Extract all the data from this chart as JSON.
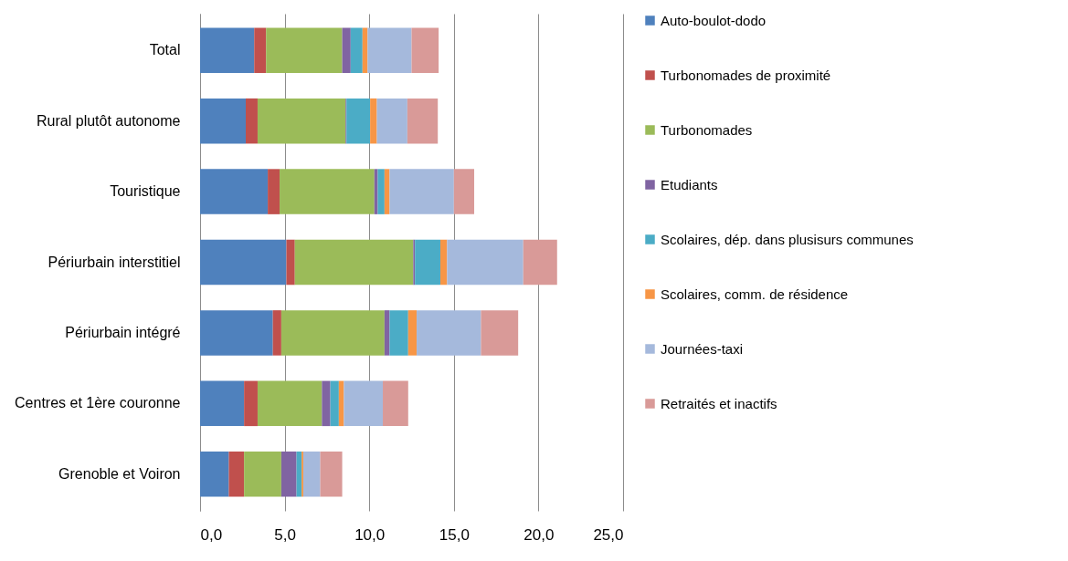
{
  "chart_data": {
    "type": "bar",
    "orientation": "horizontal",
    "stacked": true,
    "categories": [
      "Total",
      "Rural plutôt autonome",
      "Touristique",
      "Périurbain interstitiel",
      "Périurbain intégré",
      "Centres et 1ère couronne",
      "Grenoble et Voiron"
    ],
    "series": [
      {
        "name": "Auto-boulot-dodo",
        "color": "#4f81bd",
        "values": [
          3.2,
          2.7,
          4.0,
          5.1,
          4.3,
          2.6,
          1.7
        ]
      },
      {
        "name": "Turbonomades de proximité",
        "color": "#c0504d",
        "values": [
          0.7,
          0.7,
          0.7,
          0.5,
          0.5,
          0.8,
          0.9
        ]
      },
      {
        "name": "Turbonomades",
        "color": "#9bbb59",
        "values": [
          4.5,
          5.2,
          5.6,
          7.0,
          6.1,
          3.8,
          2.2
        ]
      },
      {
        "name": "Etudiants",
        "color": "#8064a2",
        "values": [
          0.5,
          0.05,
          0.2,
          0.1,
          0.3,
          0.5,
          0.9
        ]
      },
      {
        "name": "Scolaires, dép. dans plusisurs communes",
        "color": "#4bacc6",
        "values": [
          0.7,
          1.4,
          0.4,
          1.5,
          1.1,
          0.5,
          0.3
        ]
      },
      {
        "name": "Scolaires, comm. de résidence",
        "color": "#f79646",
        "values": [
          0.3,
          0.4,
          0.3,
          0.4,
          0.5,
          0.3,
          0.1
        ]
      },
      {
        "name": "Journées-taxi",
        "color": "#a5b9dc",
        "values": [
          2.6,
          1.8,
          3.8,
          4.5,
          3.8,
          2.3,
          1.0
        ]
      },
      {
        "name": "Retraités et inactifs",
        "color": "#d99a98",
        "values": [
          1.6,
          1.8,
          1.2,
          2.0,
          2.2,
          1.5,
          1.3
        ]
      }
    ],
    "xlim": [
      0,
      25
    ],
    "xticks": [
      {
        "value": 0,
        "label": "0,0"
      },
      {
        "value": 5,
        "label": "5,0"
      },
      {
        "value": 10,
        "label": "10,0"
      },
      {
        "value": 15,
        "label": "15,0"
      },
      {
        "value": 20,
        "label": "20,0"
      },
      {
        "value": 25,
        "label": "25,0"
      }
    ],
    "grid": "x",
    "legend": "right"
  }
}
